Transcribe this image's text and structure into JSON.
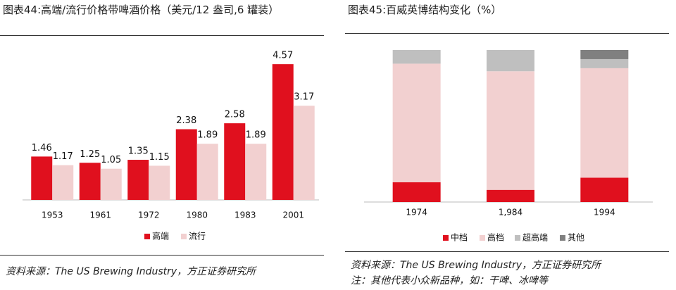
{
  "chart_data": [
    {
      "type": "bar",
      "title": "图表44:高端/流行价格带啤酒价格（美元/12 盎司,6 罐装）",
      "categories": [
        "1953",
        "1961",
        "1972",
        "1980",
        "1983",
        "2001"
      ],
      "series": [
        {
          "name": "高端",
          "color": "#e0101e",
          "values": [
            1.46,
            1.25,
            1.35,
            2.38,
            2.58,
            4.57
          ]
        },
        {
          "name": "流行",
          "color": "#f2d0d0",
          "values": [
            1.17,
            1.05,
            1.15,
            1.89,
            1.89,
            3.17
          ]
        }
      ],
      "ylim": [
        0,
        5
      ],
      "data_labels": true,
      "stacked": false,
      "source": "资料来源：The US Brewing Industry，方正证券研究所"
    },
    {
      "type": "bar",
      "title": "图表45:百威英博结构变化（%）",
      "categories": [
        "1974",
        "1,984",
        "1994"
      ],
      "series": [
        {
          "name": "中档",
          "color": "#e0101e",
          "values": [
            13,
            8,
            16
          ]
        },
        {
          "name": "高档",
          "color": "#f2d0d0",
          "values": [
            78,
            78,
            72
          ]
        },
        {
          "name": "超高端",
          "color": "#bfbfbf",
          "values": [
            9,
            14,
            6
          ]
        },
        {
          "name": "其他",
          "color": "#808080",
          "values": [
            0,
            0,
            6
          ]
        }
      ],
      "ylim": [
        0,
        100
      ],
      "data_labels": false,
      "stacked": true,
      "source": "资料来源：The US Brewing Industry，方正证券研究所",
      "note": "注：其他代表小众新品种，如：干啤、冰啤等"
    }
  ]
}
